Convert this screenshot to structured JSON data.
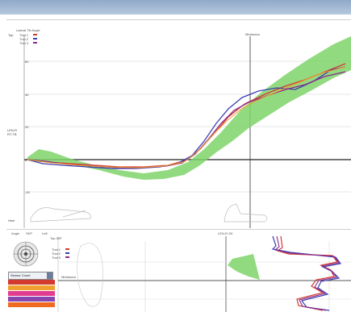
{
  "window": {
    "title_bar_color": "#9fb6d3"
  },
  "toolbar": {
    "buttons": [
      "Graph",
      "Averaging",
      "Normative"
    ]
  },
  "upper_chart": {
    "legend_title": "Lateral Tilt Angle",
    "legend_items": [
      {
        "label": "Trial 1",
        "color": "#d23a2f"
      },
      {
        "label": "Trial 2",
        "color": "#3b3fb0"
      },
      {
        "label": "Trial 3",
        "color": "#8c2a8a"
      }
    ],
    "y_top_label": "Top",
    "y_bottom_label": "Heel",
    "y_mid_label": "LEN-R",
    "y_mid_sublabel": "RT-TB",
    "y_ticks": [
      "60",
      "40",
      "20",
      "0",
      "-20"
    ],
    "marker_label": "Midstance",
    "normative_color": "#7fd36a"
  },
  "lower_panel": {
    "angle_label": "Angle",
    "ankle_label": "SKP",
    "side_label": "Left",
    "plot_title": "Top IMP",
    "axis_label": "LEN-R-SK",
    "dropdown_value": "Sensor Count",
    "legend_items": [
      {
        "label": "Trial 1",
        "color": "#d23a2f"
      },
      {
        "label": "Trial 2",
        "color": "#3b3fb0"
      },
      {
        "label": "Trial 3",
        "color": "#8c2a8a"
      }
    ],
    "mid_label": "Midstance",
    "channel_colors": [
      "#d23a2f",
      "#f0a030",
      "#e23c8f",
      "#8a44b0",
      "#f06a20"
    ]
  }
}
